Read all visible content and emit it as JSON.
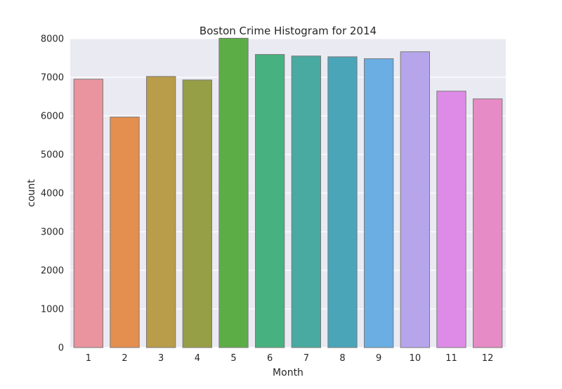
{
  "chart_data": {
    "type": "bar",
    "title": "Boston Crime Histogram for 2014",
    "xlabel": "Month",
    "ylabel": "count",
    "categories": [
      "1",
      "2",
      "3",
      "4",
      "5",
      "6",
      "7",
      "8",
      "9",
      "10",
      "11",
      "12"
    ],
    "values": [
      6950,
      5970,
      7020,
      6930,
      8010,
      7590,
      7550,
      7530,
      7480,
      7660,
      6640,
      6440
    ],
    "ylim": [
      0,
      8000
    ],
    "yticks": [
      0,
      1000,
      2000,
      3000,
      4000,
      5000,
      6000,
      7000,
      8000
    ],
    "grid": true,
    "background_color": "#EAEAF2",
    "gridline_color": "#FFFFFF",
    "bar_edge_color": "#7A7A7A",
    "bar_colors": [
      "#E9949E",
      "#E48E50",
      "#B99D4A",
      "#969F45",
      "#5DAD47",
      "#47B17F",
      "#48AAA0",
      "#4AA5B9",
      "#6AAEE3",
      "#B7A5EC",
      "#DE8BE8",
      "#E68BC5"
    ]
  }
}
